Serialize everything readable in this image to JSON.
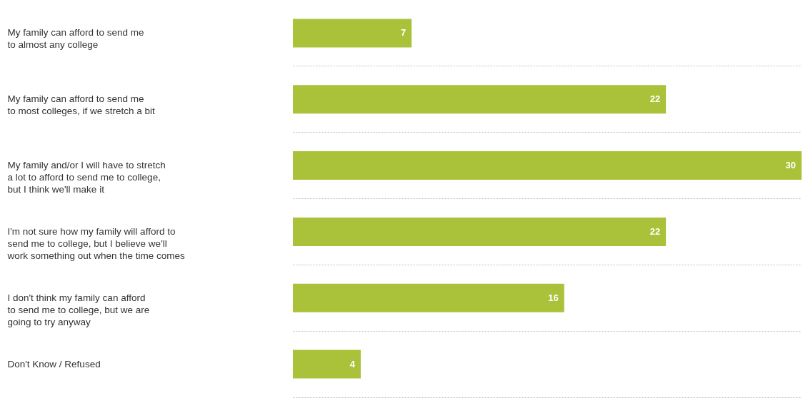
{
  "chart_data": {
    "type": "bar",
    "orientation": "horizontal",
    "categories": [
      "My family can afford to send me\nto almost any college",
      "My family can afford to send me\nto most colleges, if we stretch a bit",
      "My family and/or I will have to stretch\na lot to afford to send me to college,\nbut I think we'll make it",
      "I'm not sure how my family will afford to\nsend me to college, but I believe we'll\nwork something out when the time comes",
      "I don't think my family can afford\nto send me to college, but we are\ngoing to try anyway",
      "Don't Know / Refused"
    ],
    "values": [
      7,
      22,
      30,
      22,
      16,
      4
    ],
    "color": "#a9c23a",
    "data_labels": true,
    "grid": "y"
  }
}
